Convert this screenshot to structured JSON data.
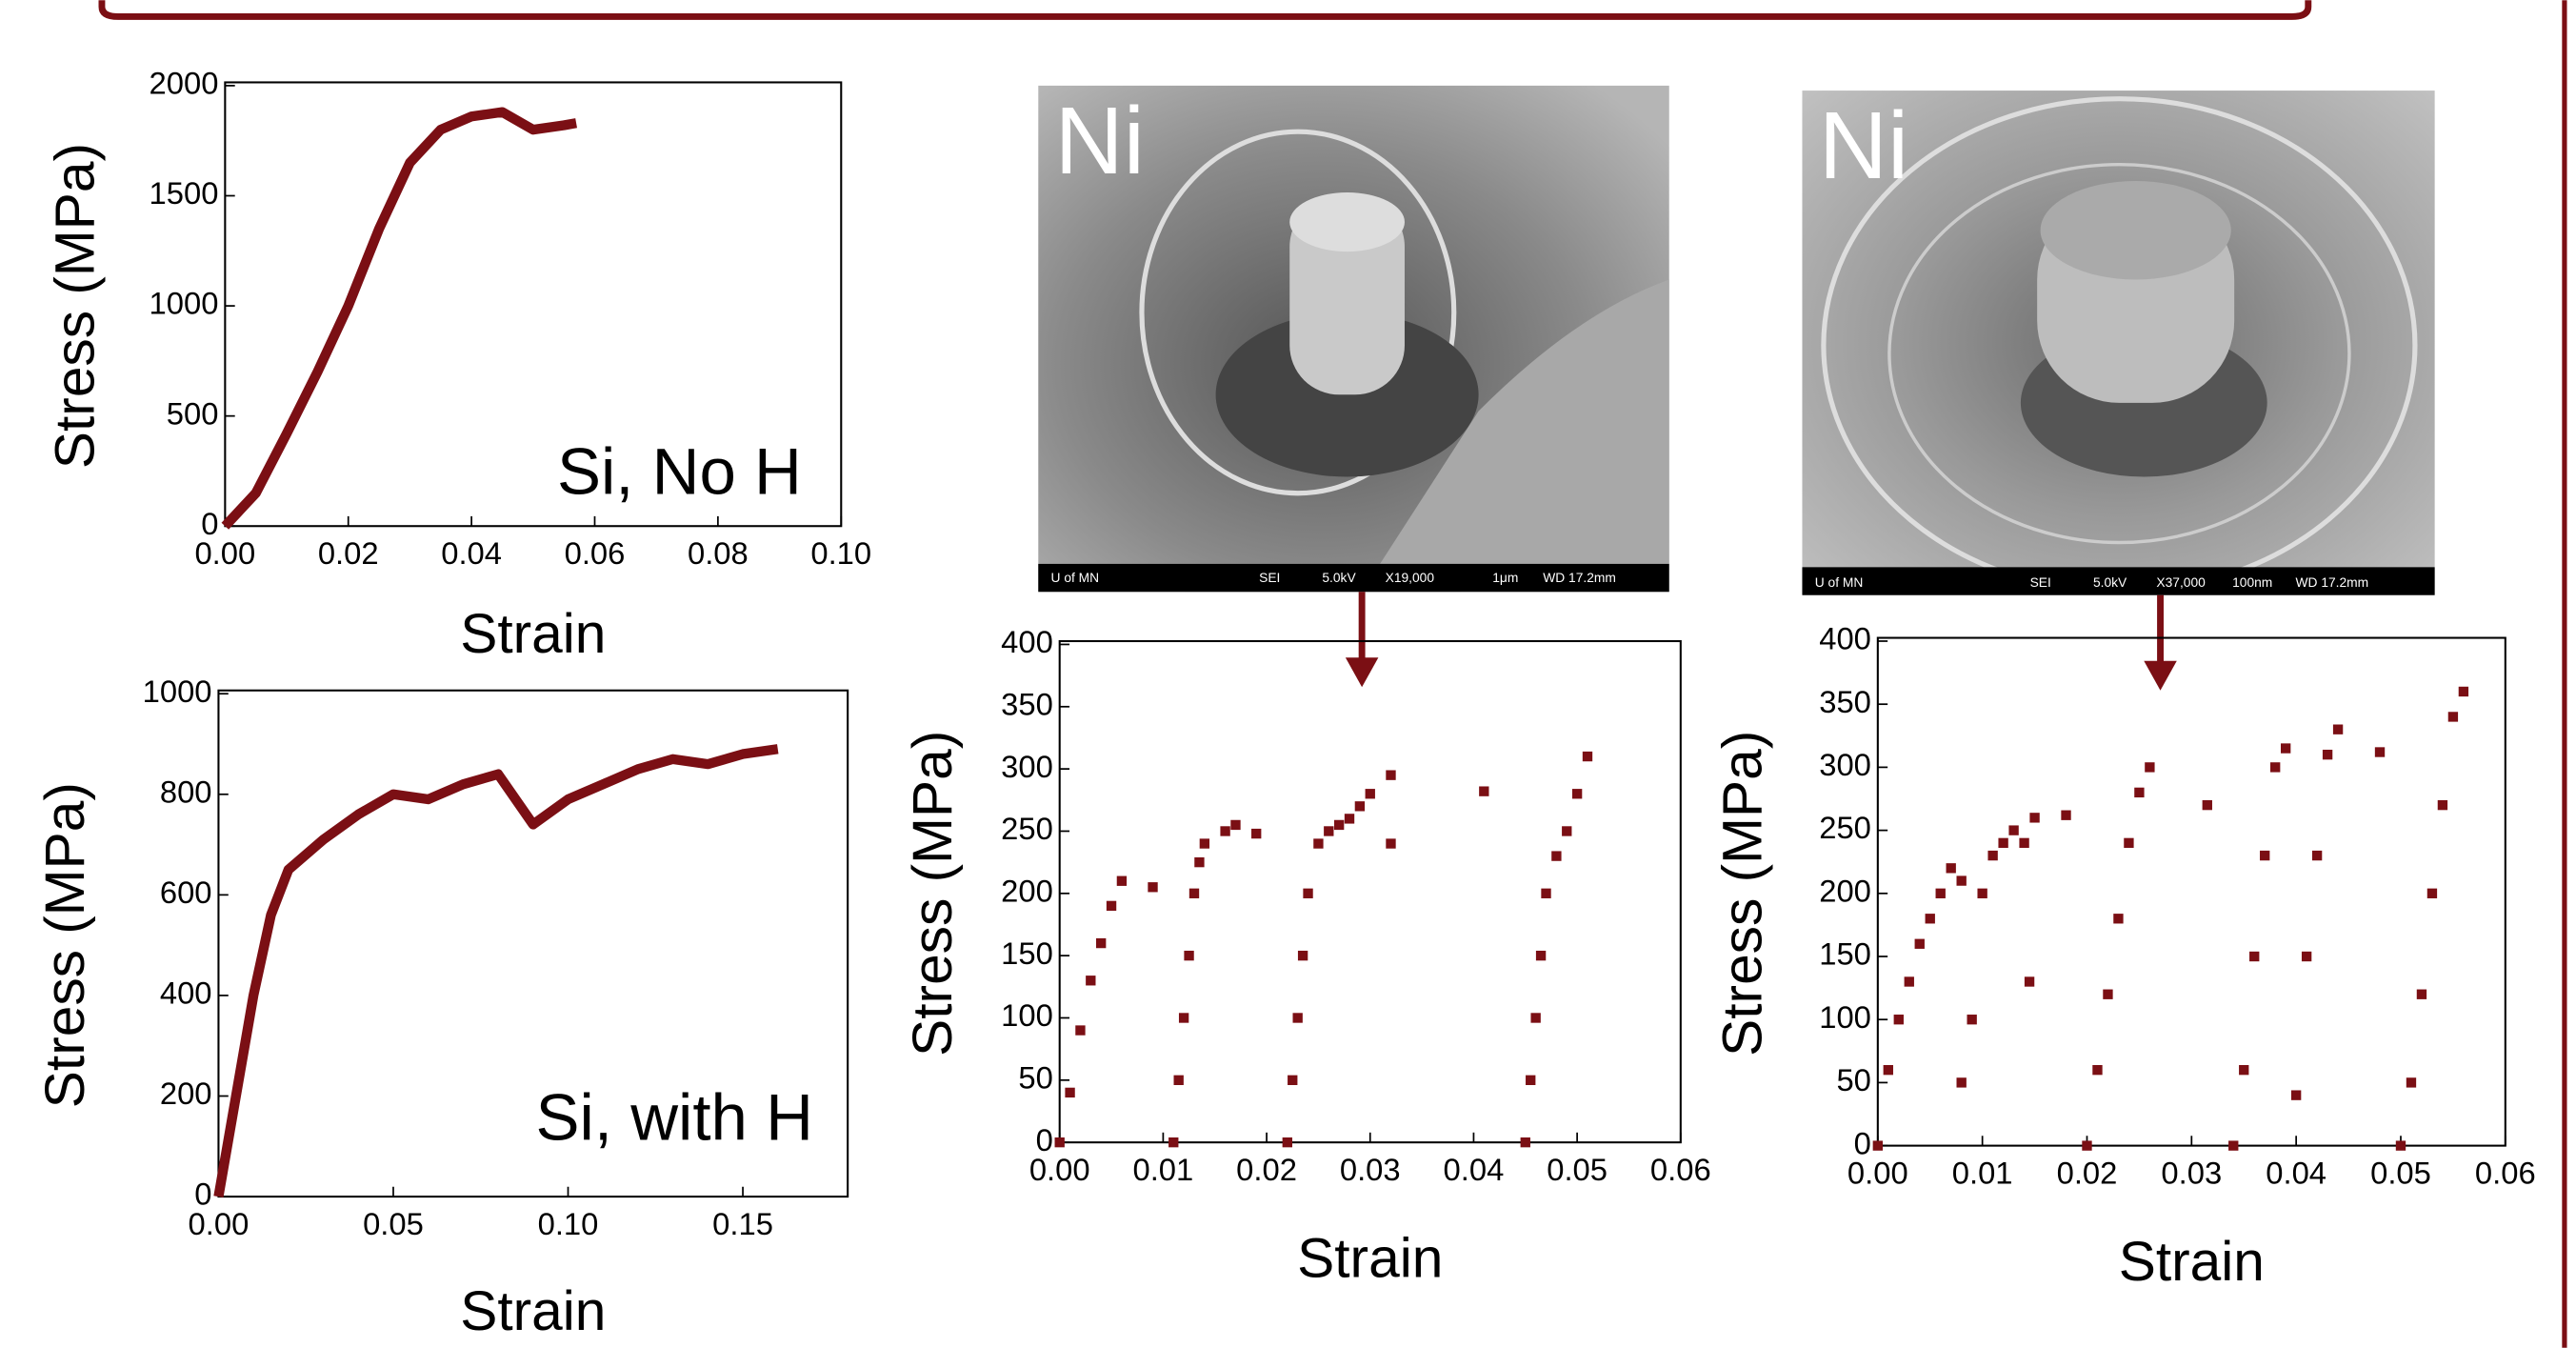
{
  "chart_data": [
    {
      "type": "line",
      "annotation": "Si, No H",
      "xlabel": "Strain",
      "ylabel": "Stress (MPa)",
      "color": "#7b0f14",
      "x": [
        0,
        0.005,
        0.01,
        0.015,
        0.02,
        0.025,
        0.03,
        0.035,
        0.04,
        0.045,
        0.05,
        0.055,
        0.057
      ],
      "values": [
        0,
        150,
        420,
        700,
        1000,
        1350,
        1650,
        1800,
        1860,
        1880,
        1800,
        1820,
        1830
      ],
      "xlim": [
        0,
        0.1
      ],
      "ylim": [
        0,
        2000
      ],
      "xticks": [
        {
          "value": 0,
          "label": "0.00"
        },
        {
          "value": 0.02,
          "label": "0.02"
        },
        {
          "value": 0.04,
          "label": "0.04"
        },
        {
          "value": 0.06,
          "label": "0.06"
        },
        {
          "value": 0.08,
          "label": "0.08"
        },
        {
          "value": 0.1,
          "label": "0.10"
        }
      ],
      "yticks": [
        0,
        500,
        1000,
        1500,
        2000
      ]
    },
    {
      "type": "line",
      "annotation": "Si, with H",
      "xlabel": "Strain",
      "ylabel": "Stress (MPa)",
      "color": "#7b0f14",
      "x": [
        0,
        0.005,
        0.01,
        0.015,
        0.02,
        0.03,
        0.04,
        0.05,
        0.06,
        0.07,
        0.08,
        0.09,
        0.1,
        0.11,
        0.12,
        0.13,
        0.14,
        0.15,
        0.16
      ],
      "values": [
        0,
        200,
        400,
        560,
        650,
        710,
        760,
        800,
        790,
        820,
        840,
        740,
        790,
        820,
        850,
        870,
        860,
        880,
        890
      ],
      "xlim": [
        0,
        0.18
      ],
      "ylim": [
        0,
        1000
      ],
      "xticks": [
        {
          "value": 0,
          "label": "0.00"
        },
        {
          "value": 0.05,
          "label": "0.05"
        },
        {
          "value": 0.1,
          "label": "0.10"
        },
        {
          "value": 0.15,
          "label": "0.15"
        }
      ],
      "yticks": [
        0,
        200,
        400,
        600,
        800,
        1000
      ]
    },
    {
      "type": "scatter",
      "xlabel": "Strain",
      "ylabel": "Stress (MPa)",
      "color": "#7b0f14",
      "x": [
        0,
        0.001,
        0.002,
        0.003,
        0.004,
        0.005,
        0.006,
        0.009,
        0.011,
        0.0115,
        0.012,
        0.0125,
        0.013,
        0.0135,
        0.014,
        0.016,
        0.017,
        0.019,
        0.022,
        0.0225,
        0.023,
        0.0235,
        0.024,
        0.025,
        0.026,
        0.027,
        0.028,
        0.029,
        0.03,
        0.032,
        0.032,
        0.041,
        0.045,
        0.0455,
        0.046,
        0.0465,
        0.047,
        0.048,
        0.049,
        0.05,
        0.051
      ],
      "values": [
        0,
        40,
        90,
        130,
        160,
        190,
        210,
        205,
        0,
        50,
        100,
        150,
        200,
        225,
        240,
        250,
        255,
        248,
        0,
        50,
        100,
        150,
        200,
        240,
        250,
        255,
        260,
        270,
        280,
        295,
        240,
        282,
        0,
        50,
        100,
        150,
        200,
        230,
        250,
        280,
        310
      ],
      "xlim": [
        0,
        0.06
      ],
      "ylim": [
        0,
        400
      ],
      "xticks": [
        {
          "value": 0,
          "label": "0.00"
        },
        {
          "value": 0.01,
          "label": "0.01"
        },
        {
          "value": 0.02,
          "label": "0.02"
        },
        {
          "value": 0.03,
          "label": "0.03"
        },
        {
          "value": 0.04,
          "label": "0.04"
        },
        {
          "value": 0.05,
          "label": "0.05"
        },
        {
          "value": 0.06,
          "label": "0.06"
        }
      ],
      "yticks": [
        0,
        50,
        100,
        150,
        200,
        250,
        300,
        350,
        400
      ]
    },
    {
      "type": "scatter",
      "xlabel": "Strain",
      "ylabel": "Stress (MPa)",
      "color": "#7b0f14",
      "x": [
        0,
        0.001,
        0.002,
        0.003,
        0.004,
        0.005,
        0.006,
        0.007,
        0.008,
        0.008,
        0.009,
        0.01,
        0.011,
        0.012,
        0.013,
        0.014,
        0.0145,
        0.015,
        0.018,
        0.02,
        0.021,
        0.022,
        0.023,
        0.024,
        0.025,
        0.026,
        0.0315,
        0.034,
        0.035,
        0.036,
        0.037,
        0.038,
        0.039,
        0.04,
        0.041,
        0.042,
        0.043,
        0.044,
        0.048,
        0.05,
        0.051,
        0.052,
        0.053,
        0.054,
        0.055,
        0.056
      ],
      "values": [
        0,
        60,
        100,
        130,
        160,
        180,
        200,
        220,
        210,
        50,
        100,
        200,
        230,
        240,
        250,
        240,
        130,
        260,
        262,
        0,
        60,
        120,
        180,
        240,
        280,
        300,
        270,
        0,
        60,
        150,
        230,
        300,
        315,
        40,
        150,
        230,
        310,
        330,
        312,
        0,
        50,
        120,
        200,
        270,
        340,
        360
      ],
      "xlim": [
        0,
        0.06
      ],
      "ylim": [
        0,
        400
      ],
      "xticks": [
        {
          "value": 0,
          "label": "0.00"
        },
        {
          "value": 0.01,
          "label": "0.01"
        },
        {
          "value": 0.02,
          "label": "0.02"
        },
        {
          "value": 0.03,
          "label": "0.03"
        },
        {
          "value": 0.04,
          "label": "0.04"
        },
        {
          "value": 0.05,
          "label": "0.05"
        },
        {
          "value": 0.06,
          "label": "0.06"
        }
      ],
      "yticks": [
        0,
        50,
        100,
        150,
        200,
        250,
        300,
        350,
        400
      ]
    }
  ],
  "images": [
    {
      "label": "Ni",
      "info": [
        "U of MN",
        "SEI",
        "5.0kV",
        "X19,000",
        "1μm",
        "WD 17.2mm"
      ]
    },
    {
      "label": "Ni",
      "info": [
        "U of MN",
        "SEI",
        "5.0kV",
        "X37,000",
        "100nm",
        "WD 17.2mm"
      ]
    }
  ]
}
